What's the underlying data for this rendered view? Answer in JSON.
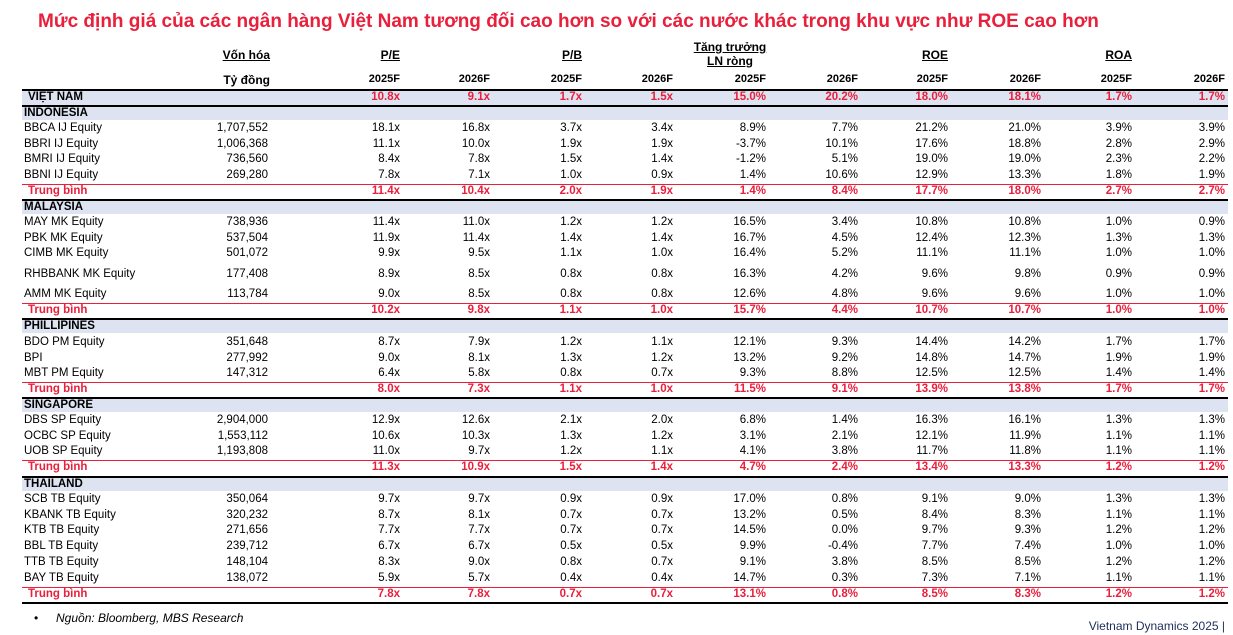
{
  "title": "Mức định giá của các ngân hàng Việt Nam tương đối cao hơn so với các nước khác trong khu vực như ROE cao hơn",
  "header": {
    "market_cap": "Vốn hóa",
    "market_cap_unit": "Tỷ đồng",
    "pe": "P/E",
    "pb": "P/B",
    "growth_line1": "Tăng trưởng",
    "growth_line2": "LN ròng",
    "roe": "ROE",
    "roa": "ROA",
    "years": [
      "2025F",
      "2026F",
      "2025F",
      "2026F",
      "2025F",
      "2026F",
      "2025F",
      "2026F",
      "2025F",
      "2026F"
    ]
  },
  "colors": {
    "accent_red": "#e8203c",
    "band_blue": "#dde3f1"
  },
  "rows": [
    {
      "type": "vn",
      "name": "VIỆT NAM",
      "cap": "",
      "v": [
        "10.8x",
        "9.1x",
        "1.7x",
        "1.5x",
        "15.0%",
        "20.2%",
        "18.0%",
        "18.1%",
        "1.7%",
        "1.7%"
      ]
    },
    {
      "type": "region",
      "name": "INDONESIA",
      "cap": "",
      "v": [
        "",
        "",
        "",
        "",
        "",
        "",
        "",
        "",
        "",
        ""
      ]
    },
    {
      "type": "data",
      "name": "BBCA IJ Equity",
      "cap": "1,707,552",
      "v": [
        "18.1x",
        "16.8x",
        "3.7x",
        "3.4x",
        "8.9%",
        "7.7%",
        "21.2%",
        "21.0%",
        "3.9%",
        "3.9%"
      ]
    },
    {
      "type": "data",
      "name": "BBRI IJ Equity",
      "cap": "1,006,368",
      "v": [
        "11.1x",
        "10.0x",
        "1.9x",
        "1.9x",
        "-3.7%",
        "10.1%",
        "17.6%",
        "18.8%",
        "2.8%",
        "2.9%"
      ]
    },
    {
      "type": "data",
      "name": "BMRI IJ Equity",
      "cap": "736,560",
      "v": [
        "8.4x",
        "7.8x",
        "1.5x",
        "1.4x",
        "-1.2%",
        "5.1%",
        "19.0%",
        "19.0%",
        "2.3%",
        "2.2%"
      ]
    },
    {
      "type": "data",
      "name": "BBNI IJ Equity",
      "cap": "269,280",
      "v": [
        "7.8x",
        "7.1x",
        "1.0x",
        "0.9x",
        "1.4%",
        "10.6%",
        "12.9%",
        "13.3%",
        "1.8%",
        "1.9%"
      ]
    },
    {
      "type": "avg",
      "name": "Trung bình",
      "cap": "",
      "v": [
        "11.4x",
        "10.4x",
        "2.0x",
        "1.9x",
        "1.4%",
        "8.4%",
        "17.7%",
        "18.0%",
        "2.7%",
        "2.7%"
      ]
    },
    {
      "type": "region",
      "name": "MALAYSIA",
      "cap": "",
      "v": [
        "",
        "",
        "",
        "",
        "",
        "",
        "",
        "",
        "",
        ""
      ]
    },
    {
      "type": "data",
      "name": "MAY MK Equity",
      "cap": "738,936",
      "v": [
        "11.4x",
        "11.0x",
        "1.2x",
        "1.2x",
        "16.5%",
        "3.4%",
        "10.8%",
        "10.8%",
        "1.0%",
        "0.9%"
      ]
    },
    {
      "type": "data",
      "name": "PBK MK Equity",
      "cap": "537,504",
      "v": [
        "11.9x",
        "11.4x",
        "1.4x",
        "1.4x",
        "16.7%",
        "4.5%",
        "12.4%",
        "12.3%",
        "1.3%",
        "1.3%"
      ]
    },
    {
      "type": "data",
      "name": "CIMB MK Equity",
      "cap": "501,072",
      "v": [
        "9.9x",
        "9.5x",
        "1.1x",
        "1.0x",
        "16.4%",
        "5.2%",
        "11.1%",
        "11.1%",
        "1.0%",
        "1.0%"
      ]
    },
    {
      "type": "data",
      "name": "RHBBANK MK Equity",
      "cap": "177,408",
      "v": [
        "8.9x",
        "8.5x",
        "0.8x",
        "0.8x",
        "16.3%",
        "4.2%",
        "9.6%",
        "9.8%",
        "0.9%",
        "0.9%"
      ]
    },
    {
      "type": "data",
      "name": "AMM MK Equity",
      "cap": "113,784",
      "v": [
        "9.0x",
        "8.5x",
        "0.8x",
        "0.8x",
        "12.6%",
        "4.8%",
        "9.6%",
        "9.6%",
        "1.0%",
        "1.0%"
      ]
    },
    {
      "type": "avg",
      "name": "Trung bình",
      "cap": "",
      "v": [
        "10.2x",
        "9.8x",
        "1.1x",
        "1.0x",
        "15.7%",
        "4.4%",
        "10.7%",
        "10.7%",
        "1.0%",
        "1.0%"
      ]
    },
    {
      "type": "region",
      "name": "PHILLIPINES",
      "cap": "",
      "v": [
        "",
        "",
        "",
        "",
        "",
        "",
        "",
        "",
        "",
        ""
      ]
    },
    {
      "type": "data",
      "name": "BDO PM Equity",
      "cap": "351,648",
      "v": [
        "8.7x",
        "7.9x",
        "1.2x",
        "1.1x",
        "12.1%",
        "9.3%",
        "14.4%",
        "14.2%",
        "1.7%",
        "1.7%"
      ]
    },
    {
      "type": "data",
      "name": "BPI",
      "cap": "277,992",
      "v": [
        "9.0x",
        "8.1x",
        "1.3x",
        "1.2x",
        "13.2%",
        "9.2%",
        "14.8%",
        "14.7%",
        "1.9%",
        "1.9%"
      ]
    },
    {
      "type": "data",
      "name": "MBT PM Equity",
      "cap": "147,312",
      "v": [
        "6.4x",
        "5.8x",
        "0.8x",
        "0.7x",
        "9.3%",
        "8.8%",
        "12.5%",
        "12.5%",
        "1.4%",
        "1.4%"
      ]
    },
    {
      "type": "avg",
      "name": "Trung bình",
      "cap": "",
      "v": [
        "8.0x",
        "7.3x",
        "1.1x",
        "1.0x",
        "11.5%",
        "9.1%",
        "13.9%",
        "13.8%",
        "1.7%",
        "1.7%"
      ]
    },
    {
      "type": "region",
      "name": "SINGAPORE",
      "cap": "",
      "v": [
        "",
        "",
        "",
        "",
        "",
        "",
        "",
        "",
        "",
        ""
      ]
    },
    {
      "type": "data",
      "name": "DBS SP Equity",
      "cap": "2,904,000",
      "v": [
        "12.9x",
        "12.6x",
        "2.1x",
        "2.0x",
        "6.8%",
        "1.4%",
        "16.3%",
        "16.1%",
        "1.3%",
        "1.3%"
      ]
    },
    {
      "type": "data",
      "name": "OCBC SP Equity",
      "cap": "1,553,112",
      "v": [
        "10.6x",
        "10.3x",
        "1.3x",
        "1.2x",
        "3.1%",
        "2.1%",
        "12.1%",
        "11.9%",
        "1.1%",
        "1.1%"
      ]
    },
    {
      "type": "data",
      "name": "UOB SP Equity",
      "cap": "1,193,808",
      "v": [
        "11.0x",
        "9.7x",
        "1.2x",
        "1.1x",
        "4.1%",
        "3.8%",
        "11.7%",
        "11.8%",
        "1.1%",
        "1.1%"
      ]
    },
    {
      "type": "avg",
      "name": "Trung bình",
      "cap": "",
      "v": [
        "11.3x",
        "10.9x",
        "1.5x",
        "1.4x",
        "4.7%",
        "2.4%",
        "13.4%",
        "13.3%",
        "1.2%",
        "1.2%"
      ]
    },
    {
      "type": "region",
      "name": "THAILAND",
      "cap": "",
      "v": [
        "",
        "",
        "",
        "",
        "",
        "",
        "",
        "",
        "",
        ""
      ]
    },
    {
      "type": "data",
      "name": "SCB TB Equity",
      "cap": "350,064",
      "v": [
        "9.7x",
        "9.7x",
        "0.9x",
        "0.9x",
        "17.0%",
        "0.8%",
        "9.1%",
        "9.0%",
        "1.3%",
        "1.3%"
      ]
    },
    {
      "type": "data",
      "name": "KBANK TB Equity",
      "cap": "320,232",
      "v": [
        "8.7x",
        "8.1x",
        "0.7x",
        "0.7x",
        "13.2%",
        "0.5%",
        "8.4%",
        "8.3%",
        "1.1%",
        "1.1%"
      ]
    },
    {
      "type": "data",
      "name": "KTB TB Equity",
      "cap": "271,656",
      "v": [
        "7.7x",
        "7.7x",
        "0.7x",
        "0.7x",
        "14.5%",
        "0.0%",
        "9.7%",
        "9.3%",
        "1.2%",
        "1.2%"
      ]
    },
    {
      "type": "data",
      "name": "BBL TB Equity",
      "cap": "239,712",
      "v": [
        "6.7x",
        "6.7x",
        "0.5x",
        "0.5x",
        "9.9%",
        "-0.4%",
        "7.7%",
        "7.4%",
        "1.0%",
        "1.0%"
      ]
    },
    {
      "type": "data",
      "name": "TTB TB Equity",
      "cap": "148,104",
      "v": [
        "8.3x",
        "9.0x",
        "0.8x",
        "0.7x",
        "9.1%",
        "3.8%",
        "8.5%",
        "8.5%",
        "1.2%",
        "1.2%"
      ]
    },
    {
      "type": "data",
      "name": "BAY TB Equity",
      "cap": "138,072",
      "v": [
        "5.9x",
        "5.7x",
        "0.4x",
        "0.4x",
        "14.7%",
        "0.3%",
        "7.3%",
        "7.1%",
        "1.1%",
        "1.1%"
      ]
    },
    {
      "type": "avg",
      "name": "Trung bình",
      "cap": "",
      "v": [
        "7.8x",
        "7.8x",
        "0.7x",
        "0.7x",
        "13.1%",
        "0.8%",
        "8.5%",
        "8.3%",
        "1.2%",
        "1.2%"
      ]
    }
  ],
  "footnote": {
    "bullet": "•",
    "text": "Nguồn: Bloomberg, MBS Research"
  },
  "brand": "Vietnam Dynamics 2025 |"
}
